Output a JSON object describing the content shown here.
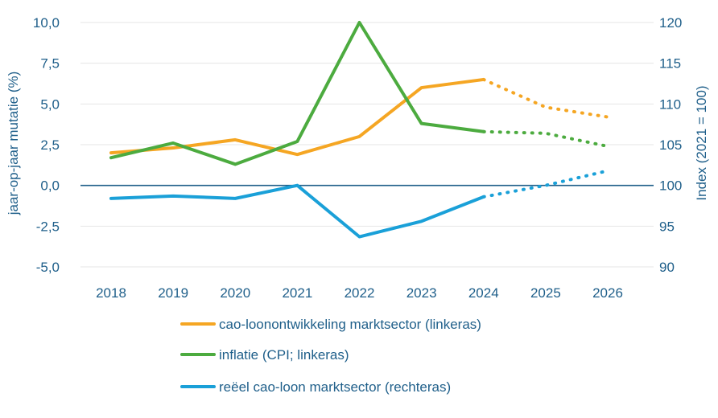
{
  "chart_data": {
    "type": "line",
    "title": "",
    "x": [
      "2018",
      "2019",
      "2020",
      "2021",
      "2022",
      "2023",
      "2024",
      "2025",
      "2026"
    ],
    "ylabel_left": "jaar-op-jaar mutatie (%)",
    "ylabel_right": "Index (2021 = 100)",
    "ylim_left": [
      -5,
      10
    ],
    "ylim_right": [
      90,
      120
    ],
    "yticks_left": [
      "10,0",
      "7,5",
      "5,0",
      "2,5",
      "0,0",
      "-2,5",
      "-5,0"
    ],
    "yticks_right": [
      "120",
      "115",
      "110",
      "105",
      "100",
      "95",
      "90"
    ],
    "grid": true,
    "legend_position": "bottom",
    "series": [
      {
        "name": "cao-loonontwikkeling marktsector (linkeras)",
        "axis": "left",
        "color": "#f5a623",
        "values": [
          2.0,
          2.3,
          2.8,
          1.9,
          3.0,
          6.0,
          6.5,
          4.8,
          4.2
        ],
        "dashed_from_index": 6
      },
      {
        "name": "inflatie (CPI; linkeras)",
        "axis": "left",
        "color": "#4cab3f",
        "values": [
          1.7,
          2.6,
          1.3,
          2.7,
          10.0,
          3.8,
          3.3,
          3.2,
          2.4
        ],
        "dashed_from_index": 6
      },
      {
        "name": "reëel cao-loon marktsector (rechteras)",
        "axis": "right",
        "color": "#1aa0d8",
        "values": [
          98.4,
          98.7,
          98.4,
          100.0,
          93.7,
          95.6,
          98.6,
          100.0,
          101.8
        ],
        "dashed_from_index": 6
      }
    ]
  }
}
